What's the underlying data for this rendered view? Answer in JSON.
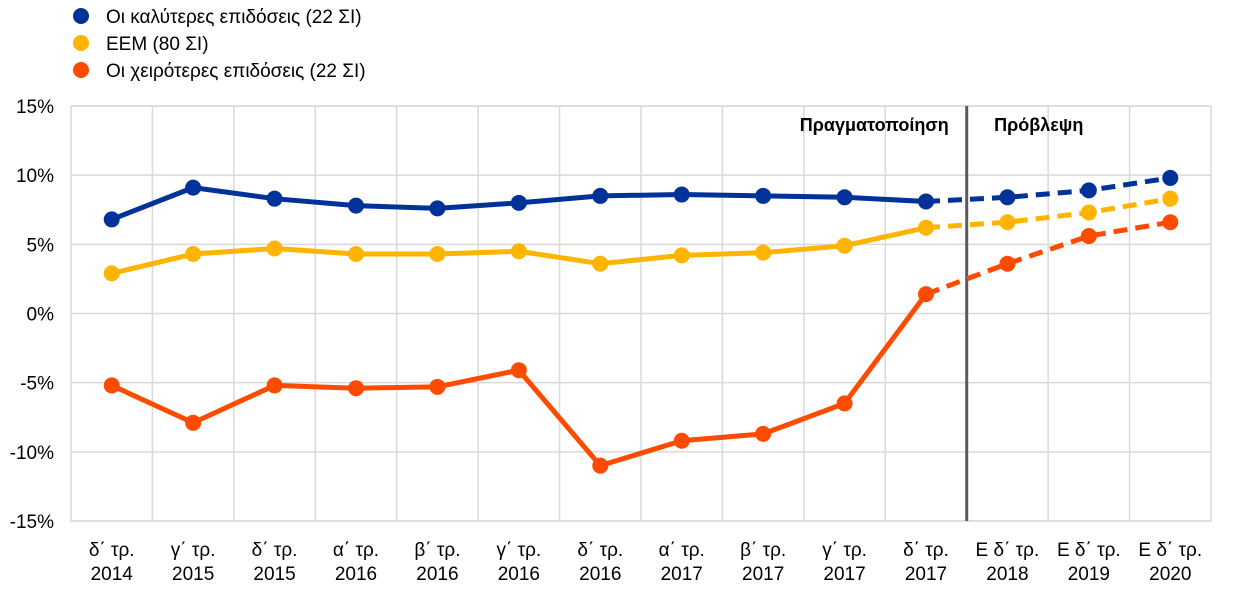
{
  "chart_data": {
    "type": "line",
    "categories": [
      [
        "δ΄ τρ.",
        "2014"
      ],
      [
        "γ΄ τρ.",
        "2015"
      ],
      [
        "δ΄ τρ.",
        "2015"
      ],
      [
        "α΄ τρ.",
        "2016"
      ],
      [
        "β΄ τρ.",
        "2016"
      ],
      [
        "γ΄ τρ.",
        "2016"
      ],
      [
        "δ΄ τρ.",
        "2016"
      ],
      [
        "α΄ τρ.",
        "2017"
      ],
      [
        "β΄ τρ.",
        "2017"
      ],
      [
        "γ΄ τρ.",
        "2017"
      ],
      [
        "δ΄ τρ.",
        "2017"
      ],
      [
        "Ε δ΄ τρ.",
        "2018"
      ],
      [
        "Ε δ΄ τρ.",
        "2019"
      ],
      [
        "Ε δ΄ τρ.",
        "2020"
      ]
    ],
    "yticks": [
      {
        "value": 15,
        "label": "15%"
      },
      {
        "value": 10,
        "label": "10%"
      },
      {
        "value": 5,
        "label": "5%"
      },
      {
        "value": 0,
        "label": "0%"
      },
      {
        "value": -5,
        "label": "-5%"
      },
      {
        "value": -10,
        "label": "-10%"
      },
      {
        "value": -15,
        "label": "-15%"
      }
    ],
    "ylim": [
      -15,
      15
    ],
    "grid": true,
    "legend_position": "top-left",
    "actual_label": "Πραγματοποίηση",
    "forecast_label": "Πρόβλεψη",
    "forecast_start_index": 10,
    "series": [
      {
        "name": "Οι καλύτερες επιδόσεις (22 ΣΙ)",
        "color": "#003299",
        "values": [
          6.8,
          9.1,
          8.3,
          7.8,
          7.6,
          8.0,
          8.5,
          8.6,
          8.5,
          8.4,
          8.1,
          8.4,
          8.9,
          9.8
        ]
      },
      {
        "name": "ΕΕΜ (80 ΣΙ)",
        "color": "#FFB400",
        "values": [
          2.9,
          4.3,
          4.7,
          4.3,
          4.3,
          4.5,
          3.6,
          4.2,
          4.4,
          4.9,
          6.2,
          6.6,
          7.3,
          8.3
        ]
      },
      {
        "name": "Οι χειρότερες επιδόσεις (22 ΣΙ)",
        "color": "#FF4B00",
        "values": [
          -5.2,
          -7.9,
          -5.2,
          -5.4,
          -5.3,
          -4.1,
          -11.0,
          -9.2,
          -8.7,
          -6.5,
          1.4,
          3.6,
          5.6,
          6.6
        ]
      }
    ]
  }
}
